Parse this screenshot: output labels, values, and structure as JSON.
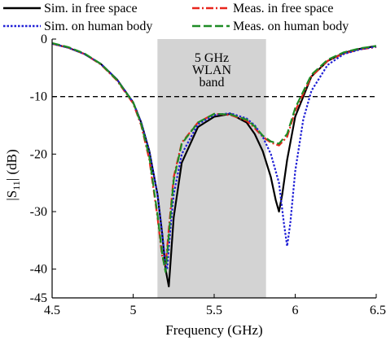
{
  "chart_data": {
    "type": "line",
    "xlabel": "Frequency (GHz)",
    "ylabel": "|S11| (dB)",
    "xlim": [
      4.5,
      6.5
    ],
    "ylim": [
      -45,
      0
    ],
    "xticks": [
      4.5,
      5,
      5.5,
      6,
      6.5
    ],
    "xtick_labels": [
      "4.5",
      "5",
      "5.5",
      "6",
      "6.5"
    ],
    "yticks": [
      0,
      -10,
      -20,
      -30,
      -40,
      -45
    ],
    "ytick_labels": [
      "0",
      "-10",
      "-20",
      "-30",
      "-40",
      "-45"
    ],
    "grid": false,
    "legend_position": "top",
    "band": {
      "x_start": 5.15,
      "x_end": 5.82,
      "label_lines": [
        "5 GHz",
        "WLAN",
        "band"
      ],
      "color": "#d3d3d3"
    },
    "threshold": {
      "y": -10,
      "color": "#000000"
    },
    "series": [
      {
        "name": "Sim. in free space",
        "color": "#000000",
        "style": "solid",
        "x": [
          4.5,
          4.6,
          4.7,
          4.8,
          4.9,
          5.0,
          5.05,
          5.1,
          5.15,
          5.18,
          5.2,
          5.22,
          5.25,
          5.3,
          5.4,
          5.5,
          5.6,
          5.7,
          5.75,
          5.8,
          5.85,
          5.88,
          5.9,
          5.92,
          5.95,
          6.0,
          6.1,
          6.2,
          6.3,
          6.4,
          6.5
        ],
        "y": [
          -0.8,
          -1.5,
          -2.6,
          -4.3,
          -7.0,
          -11.0,
          -14.5,
          -19.5,
          -27.0,
          -34.0,
          -40.0,
          -43.0,
          -31.0,
          -21.5,
          -15.3,
          -13.5,
          -13.0,
          -14.5,
          -16.5,
          -19.5,
          -24.0,
          -28.0,
          -30.0,
          -27.0,
          -21.0,
          -13.5,
          -6.5,
          -3.8,
          -2.4,
          -1.7,
          -1.2
        ]
      },
      {
        "name": "Meas. in free space",
        "color": "#e8251c",
        "style": "dashdot",
        "x": [
          4.5,
          4.6,
          4.7,
          4.8,
          4.9,
          5.0,
          5.05,
          5.1,
          5.15,
          5.18,
          5.2,
          5.22,
          5.25,
          5.3,
          5.4,
          5.5,
          5.6,
          5.7,
          5.75,
          5.8,
          5.85,
          5.9,
          5.95,
          6.0,
          6.1,
          6.2,
          6.3,
          6.4,
          6.5
        ],
        "y": [
          -0.8,
          -1.5,
          -2.6,
          -4.4,
          -7.2,
          -11.2,
          -15.0,
          -21.0,
          -31.0,
          -38.0,
          -39.5,
          -33.0,
          -24.0,
          -18.0,
          -14.5,
          -13.0,
          -13.2,
          -14.2,
          -15.5,
          -17.0,
          -18.0,
          -18.5,
          -17.0,
          -12.5,
          -6.5,
          -3.8,
          -2.5,
          -1.8,
          -1.4
        ]
      },
      {
        "name": "Sim. on human body",
        "color": "#1f1fd6",
        "style": "dotted",
        "x": [
          4.5,
          4.6,
          4.7,
          4.8,
          4.9,
          5.0,
          5.05,
          5.1,
          5.15,
          5.18,
          5.2,
          5.21,
          5.23,
          5.25,
          5.3,
          5.4,
          5.5,
          5.6,
          5.7,
          5.75,
          5.8,
          5.85,
          5.9,
          5.93,
          5.95,
          5.97,
          6.0,
          6.05,
          6.1,
          6.2,
          6.3,
          6.4,
          6.5
        ],
        "y": [
          -0.8,
          -1.5,
          -2.6,
          -4.3,
          -7.0,
          -11.0,
          -14.5,
          -19.5,
          -27.0,
          -34.0,
          -39.0,
          -40.0,
          -33.0,
          -27.0,
          -20.0,
          -14.8,
          -13.2,
          -12.9,
          -13.8,
          -15.0,
          -17.0,
          -20.0,
          -25.0,
          -32.0,
          -36.0,
          -32.0,
          -23.0,
          -14.0,
          -9.0,
          -4.5,
          -2.6,
          -1.8,
          -1.3
        ]
      },
      {
        "name": "Meas. on human body",
        "color": "#1e8c25",
        "style": "dashed",
        "x": [
          4.5,
          4.6,
          4.7,
          4.8,
          4.9,
          5.0,
          5.05,
          5.1,
          5.15,
          5.18,
          5.2,
          5.22,
          5.25,
          5.3,
          5.4,
          5.5,
          5.6,
          5.7,
          5.75,
          5.8,
          5.85,
          5.9,
          5.95,
          6.0,
          6.1,
          6.2,
          6.3,
          6.4,
          6.5
        ],
        "y": [
          -0.7,
          -1.4,
          -2.5,
          -4.3,
          -7.1,
          -11.0,
          -14.8,
          -20.5,
          -30.5,
          -37.5,
          -40.5,
          -34.0,
          -24.5,
          -18.2,
          -14.5,
          -13.0,
          -13.1,
          -14.0,
          -15.2,
          -16.8,
          -17.8,
          -18.2,
          -16.5,
          -12.0,
          -6.2,
          -3.6,
          -2.3,
          -1.6,
          -1.2
        ]
      }
    ]
  }
}
